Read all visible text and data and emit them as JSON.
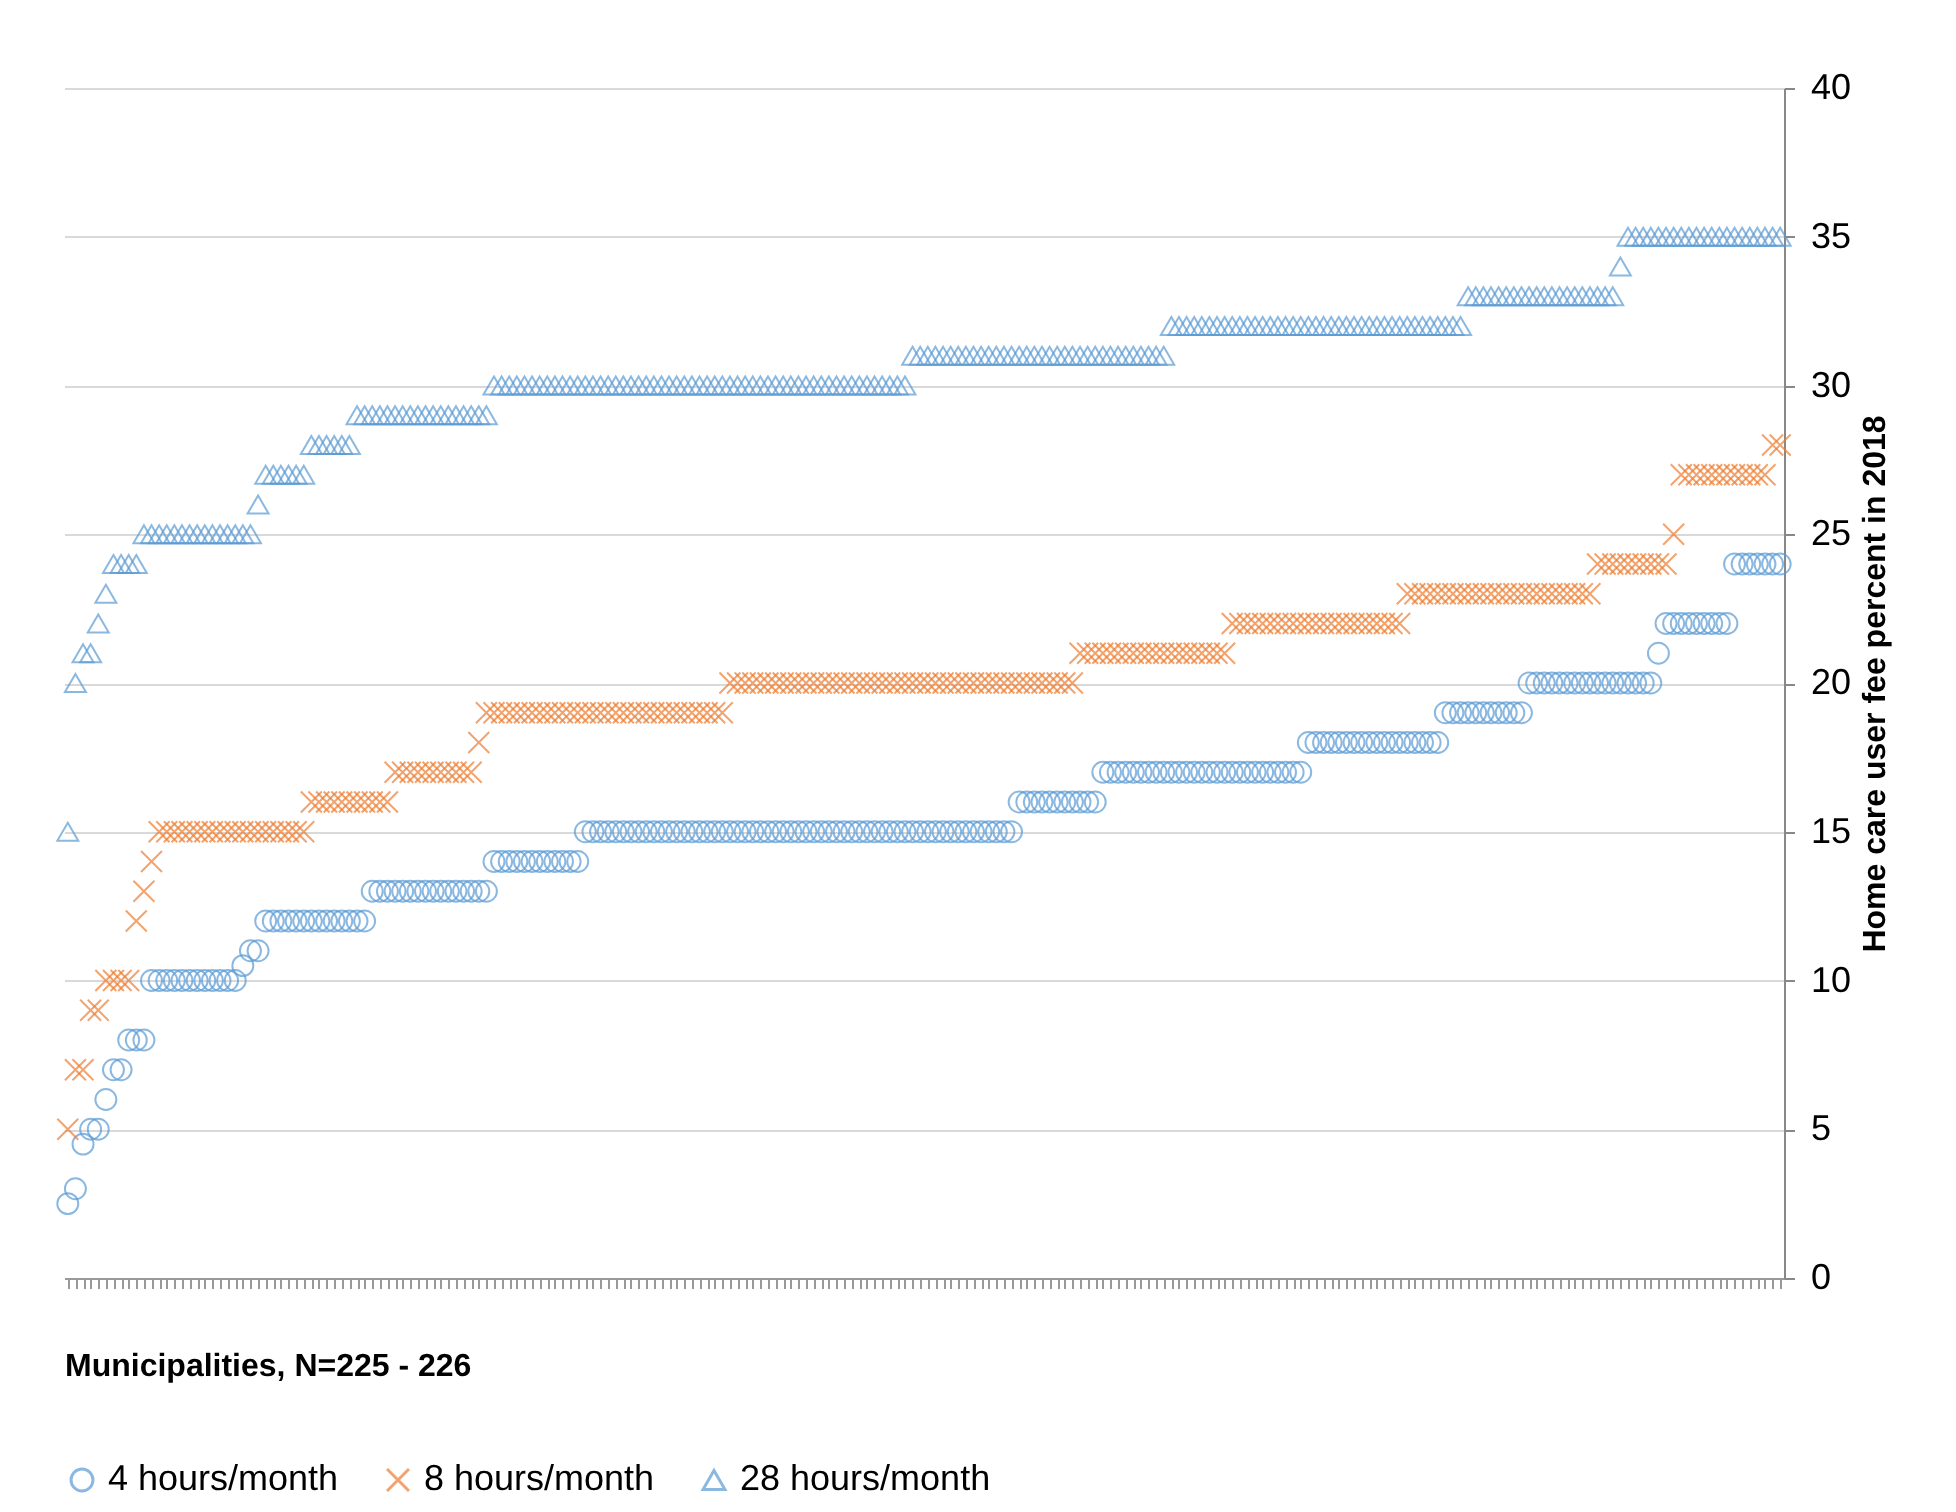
{
  "chart_data": {
    "type": "scatter",
    "xlabel": "Municipalities, N=225 -  226",
    "ylabel": "Home care user fee percent in 2018",
    "categories": [
      null,
      null,
      null,
      null,
      null,
      null,
      null,
      null,
      null,
      null,
      null,
      null,
      null,
      null,
      null,
      null,
      null,
      null,
      null,
      null,
      null,
      null,
      null,
      null,
      null,
      null,
      null,
      null,
      null,
      null,
      null,
      null,
      null,
      null,
      null,
      null,
      null,
      null,
      null,
      null,
      null,
      null,
      null,
      null,
      null,
      null,
      null,
      null,
      null,
      null,
      null,
      null,
      null,
      null,
      null,
      null,
      null,
      null,
      null,
      null,
      null,
      null,
      null,
      null,
      null,
      null,
      null,
      null,
      null,
      null,
      null,
      null,
      null,
      null,
      null,
      null,
      null,
      null,
      null,
      null,
      null,
      null,
      null,
      null,
      null,
      null,
      null,
      null,
      null,
      null,
      null,
      null,
      null,
      null,
      null,
      null,
      null,
      null,
      null,
      null,
      null,
      null,
      null,
      null,
      null,
      null,
      null,
      null,
      null,
      null,
      null,
      null,
      null,
      null,
      null,
      null,
      null,
      null,
      null,
      null,
      null,
      null,
      null,
      null,
      null,
      null,
      null,
      null,
      null,
      null,
      null,
      null,
      null,
      null,
      null,
      null,
      null,
      null,
      null,
      null,
      null,
      null,
      null,
      null,
      null,
      null,
      null,
      null,
      null,
      null,
      null,
      null,
      null,
      null,
      null,
      null,
      null,
      null,
      null,
      null,
      null,
      null,
      null,
      null,
      null,
      null,
      null,
      null,
      null,
      null,
      null,
      null,
      null,
      null,
      null,
      null,
      null,
      null,
      null,
      null,
      null,
      null,
      null,
      null,
      null,
      null,
      null,
      null,
      null,
      null,
      null,
      null,
      null,
      null,
      null,
      null,
      null,
      null,
      null,
      null,
      null,
      null,
      null,
      null,
      null,
      null,
      null,
      null,
      null,
      null,
      null,
      null,
      null,
      null,
      null,
      null,
      null,
      null,
      null,
      null,
      null,
      null,
      null,
      null,
      null,
      null
    ],
    "series": [
      {
        "name": "4 hours/month",
        "color": "#5b9bd5",
        "marker": "circle",
        "values": [
          2.5,
          3,
          4.5,
          5,
          5,
          6,
          7,
          7,
          8,
          8,
          8,
          10,
          10,
          10,
          10,
          10,
          10,
          10,
          10,
          10,
          10,
          10,
          10,
          10.5,
          11,
          11,
          12,
          12,
          12,
          12,
          12,
          12,
          12,
          12,
          12,
          12,
          12,
          12,
          12,
          12,
          13,
          13,
          13,
          13,
          13,
          13,
          13,
          13,
          13,
          13,
          13,
          13,
          13,
          13,
          13,
          13,
          14,
          14,
          14,
          14,
          14,
          14,
          14,
          14,
          14,
          14,
          14,
          14,
          15,
          15,
          15,
          15,
          15,
          15,
          15,
          15,
          15,
          15,
          15,
          15,
          15,
          15,
          15,
          15,
          15,
          15,
          15,
          15,
          15,
          15,
          15,
          15,
          15,
          15,
          15,
          15,
          15,
          15,
          15,
          15,
          15,
          15,
          15,
          15,
          15,
          15,
          15,
          15,
          15,
          15,
          15,
          15,
          15,
          15,
          15,
          15,
          15,
          15,
          15,
          15,
          15,
          15,
          15,
          15,
          15,
          16,
          16,
          16,
          16,
          16,
          16,
          16,
          16,
          16,
          16,
          16,
          17,
          17,
          17,
          17,
          17,
          17,
          17,
          17,
          17,
          17,
          17,
          17,
          17,
          17,
          17,
          17,
          17,
          17,
          17,
          17,
          17,
          17,
          17,
          17,
          17,
          17,
          17,
          18,
          18,
          18,
          18,
          18,
          18,
          18,
          18,
          18,
          18,
          18,
          18,
          18,
          18,
          18,
          18,
          18,
          18,
          19,
          19,
          19,
          19,
          19,
          19,
          19,
          19,
          19,
          19,
          19,
          20,
          20,
          20,
          20,
          20,
          20,
          20,
          20,
          20,
          20,
          20,
          20,
          20,
          20,
          20,
          20,
          20,
          21,
          22,
          22,
          22,
          22,
          22,
          22,
          22,
          22,
          22,
          24,
          24,
          24,
          24,
          24,
          24,
          24
        ]
      },
      {
        "name": "8 hours/month",
        "color": "#ed7d31",
        "marker": "cross",
        "values": [
          5,
          7,
          7,
          9,
          9,
          10,
          10,
          10,
          10,
          12,
          13,
          14,
          15,
          15,
          15,
          15,
          15,
          15,
          15,
          15,
          15,
          15,
          15,
          15,
          15,
          15,
          15,
          15,
          15,
          15,
          15,
          15,
          16,
          16,
          16,
          16,
          16,
          16,
          16,
          16,
          16,
          16,
          16,
          17,
          17,
          17,
          17,
          17,
          17,
          17,
          17,
          17,
          17,
          17,
          18,
          19,
          19,
          19,
          19,
          19,
          19,
          19,
          19,
          19,
          19,
          19,
          19,
          19,
          19,
          19,
          19,
          19,
          19,
          19,
          19,
          19,
          19,
          19,
          19,
          19,
          19,
          19,
          19,
          19,
          19,
          19,
          19,
          20,
          20,
          20,
          20,
          20,
          20,
          20,
          20,
          20,
          20,
          20,
          20,
          20,
          20,
          20,
          20,
          20,
          20,
          20,
          20,
          20,
          20,
          20,
          20,
          20,
          20,
          20,
          20,
          20,
          20,
          20,
          20,
          20,
          20,
          20,
          20,
          20,
          20,
          20,
          20,
          20,
          20,
          20,
          20,
          20,
          20,
          21,
          21,
          21,
          21,
          21,
          21,
          21,
          21,
          21,
          21,
          21,
          21,
          21,
          21,
          21,
          21,
          21,
          21,
          21,
          21,
          22,
          22,
          22,
          22,
          22,
          22,
          22,
          22,
          22,
          22,
          22,
          22,
          22,
          22,
          22,
          22,
          22,
          22,
          22,
          22,
          22,
          22,
          22,
          23,
          23,
          23,
          23,
          23,
          23,
          23,
          23,
          23,
          23,
          23,
          23,
          23,
          23,
          23,
          23,
          23,
          23,
          23,
          23,
          23,
          23,
          23,
          23,
          23,
          24,
          24,
          24,
          24,
          24,
          24,
          24,
          24,
          24,
          24,
          25,
          27,
          27,
          27,
          27,
          27,
          27,
          27,
          27,
          27,
          27,
          27,
          27,
          28,
          28
        ]
      },
      {
        "name": "28 hours/month",
        "color": "#5b9bd5",
        "marker": "triangle",
        "values": [
          15,
          20,
          21,
          21,
          22,
          23,
          24,
          24,
          24,
          24,
          25,
          25,
          25,
          25,
          25,
          25,
          25,
          25,
          25,
          25,
          25,
          25,
          25,
          25,
          25,
          26,
          27,
          27,
          27,
          27,
          27,
          27,
          28,
          28,
          28,
          28,
          28,
          28,
          29,
          29,
          29,
          29,
          29,
          29,
          29,
          29,
          29,
          29,
          29,
          29,
          29,
          29,
          29,
          29,
          29,
          29,
          30,
          30,
          30,
          30,
          30,
          30,
          30,
          30,
          30,
          30,
          30,
          30,
          30,
          30,
          30,
          30,
          30,
          30,
          30,
          30,
          30,
          30,
          30,
          30,
          30,
          30,
          30,
          30,
          30,
          30,
          30,
          30,
          30,
          30,
          30,
          30,
          30,
          30,
          30,
          30,
          30,
          30,
          30,
          30,
          30,
          30,
          30,
          30,
          30,
          30,
          30,
          30,
          30,
          30,
          30,
          31,
          31,
          31,
          31,
          31,
          31,
          31,
          31,
          31,
          31,
          31,
          31,
          31,
          31,
          31,
          31,
          31,
          31,
          31,
          31,
          31,
          31,
          31,
          31,
          31,
          31,
          31,
          31,
          31,
          31,
          31,
          31,
          31,
          31,
          32,
          32,
          32,
          32,
          32,
          32,
          32,
          32,
          32,
          32,
          32,
          32,
          32,
          32,
          32,
          32,
          32,
          32,
          32,
          32,
          32,
          32,
          32,
          32,
          32,
          32,
          32,
          32,
          32,
          32,
          32,
          32,
          32,
          32,
          32,
          32,
          32,
          32,
          32,
          33,
          33,
          33,
          33,
          33,
          33,
          33,
          33,
          33,
          33,
          33,
          33,
          33,
          33,
          33,
          33,
          33,
          33,
          33,
          33,
          34,
          35,
          35,
          35,
          35,
          35,
          35,
          35,
          35,
          35,
          35,
          35,
          35,
          35,
          35,
          35,
          35,
          35,
          35,
          35,
          35,
          35
        ]
      }
    ],
    "ylim": [
      0,
      40
    ],
    "yticks": [
      0,
      5,
      10,
      15,
      20,
      25,
      30,
      35,
      40
    ],
    "grid": "y",
    "legend": "bottom",
    "tick_labels": "y"
  }
}
